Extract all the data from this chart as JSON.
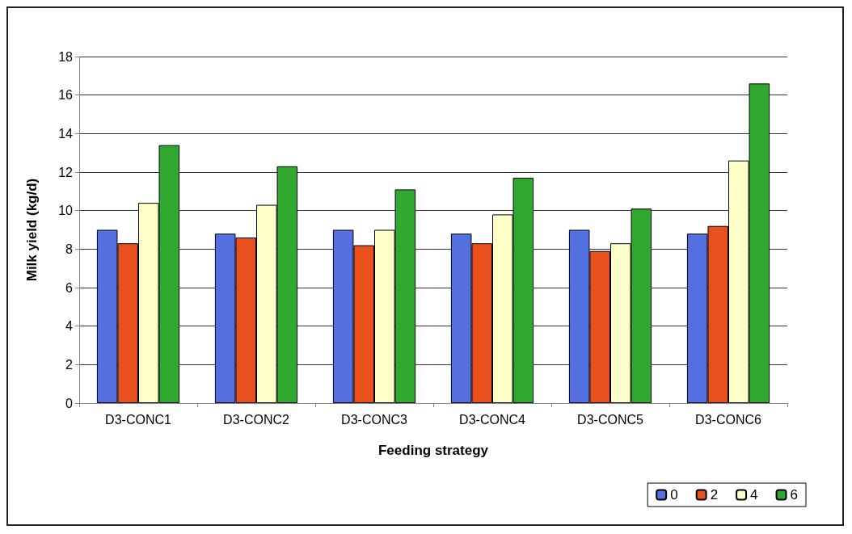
{
  "chart_data": {
    "type": "bar",
    "xlabel": "Feeding strategy",
    "ylabel": "Milk yield (kg/d)",
    "categories": [
      "D3-CONC1",
      "D3-CONC2",
      "D3-CONC3",
      "D3-CONC4",
      "D3-CONC5",
      "D3-CONC6"
    ],
    "series": [
      {
        "name": "0",
        "color": "#5470e0",
        "values": [
          9.0,
          8.8,
          9.0,
          8.8,
          9.0,
          8.8
        ]
      },
      {
        "name": "2",
        "color": "#e8501e",
        "values": [
          8.3,
          8.6,
          8.2,
          8.3,
          7.9,
          9.2
        ]
      },
      {
        "name": "4",
        "color": "#ffffc8",
        "values": [
          10.4,
          10.3,
          9.0,
          9.8,
          8.3,
          12.6
        ]
      },
      {
        "name": "6",
        "color": "#30a830",
        "values": [
          13.4,
          12.3,
          11.1,
          11.7,
          10.1,
          16.6
        ]
      }
    ],
    "ylim": [
      0,
      18
    ],
    "yticks": [
      0,
      2,
      4,
      6,
      8,
      10,
      12,
      14,
      16,
      18
    ],
    "grid": "y",
    "legend": "bottom right"
  }
}
